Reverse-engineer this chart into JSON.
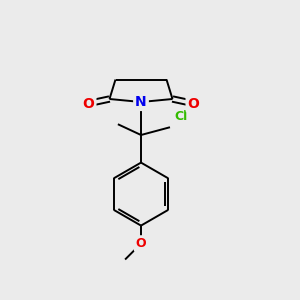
{
  "background_color": "#ebebeb",
  "atom_colors": {
    "C": "#000000",
    "N": "#0000ee",
    "O": "#ee0000",
    "Cl": "#33bb00"
  },
  "bond_color": "#000000",
  "bond_width": 1.4
}
